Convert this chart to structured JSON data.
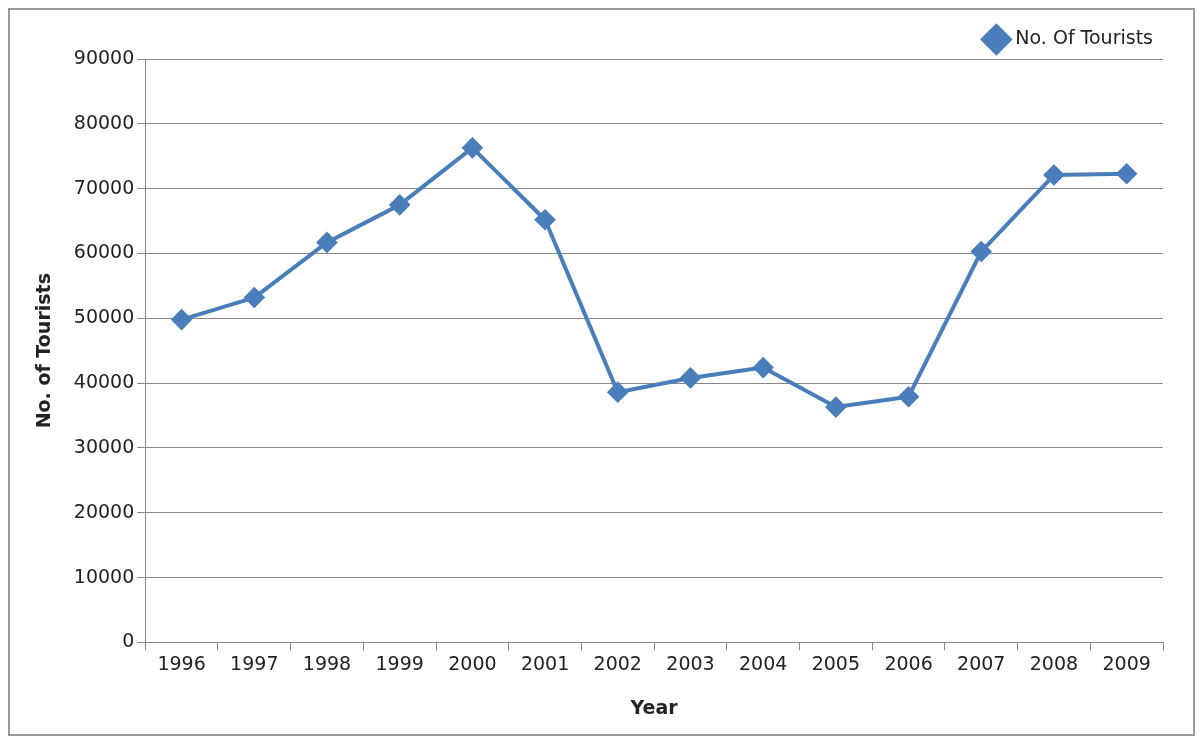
{
  "chart_data": {
    "type": "line",
    "xlabel": "Year",
    "ylabel": "No. of Tourists",
    "categories": [
      "1996",
      "1997",
      "1998",
      "1999",
      "2000",
      "2001",
      "2002",
      "2003",
      "2004",
      "2005",
      "2006",
      "2007",
      "2008",
      "2009"
    ],
    "series": [
      {
        "name": "No. Of Tourists",
        "color": "#4a7ebb",
        "values": [
          49800,
          53200,
          61700,
          67500,
          76300,
          65200,
          38600,
          40800,
          42400,
          36300,
          37900,
          60300,
          72100,
          72300
        ]
      }
    ],
    "ylim": [
      0,
      90000
    ],
    "yticks": [
      0,
      10000,
      20000,
      30000,
      40000,
      50000,
      60000,
      70000,
      80000,
      90000
    ],
    "grid": "y",
    "legend": "top right",
    "marker": "diamond",
    "line_style": "solid"
  }
}
